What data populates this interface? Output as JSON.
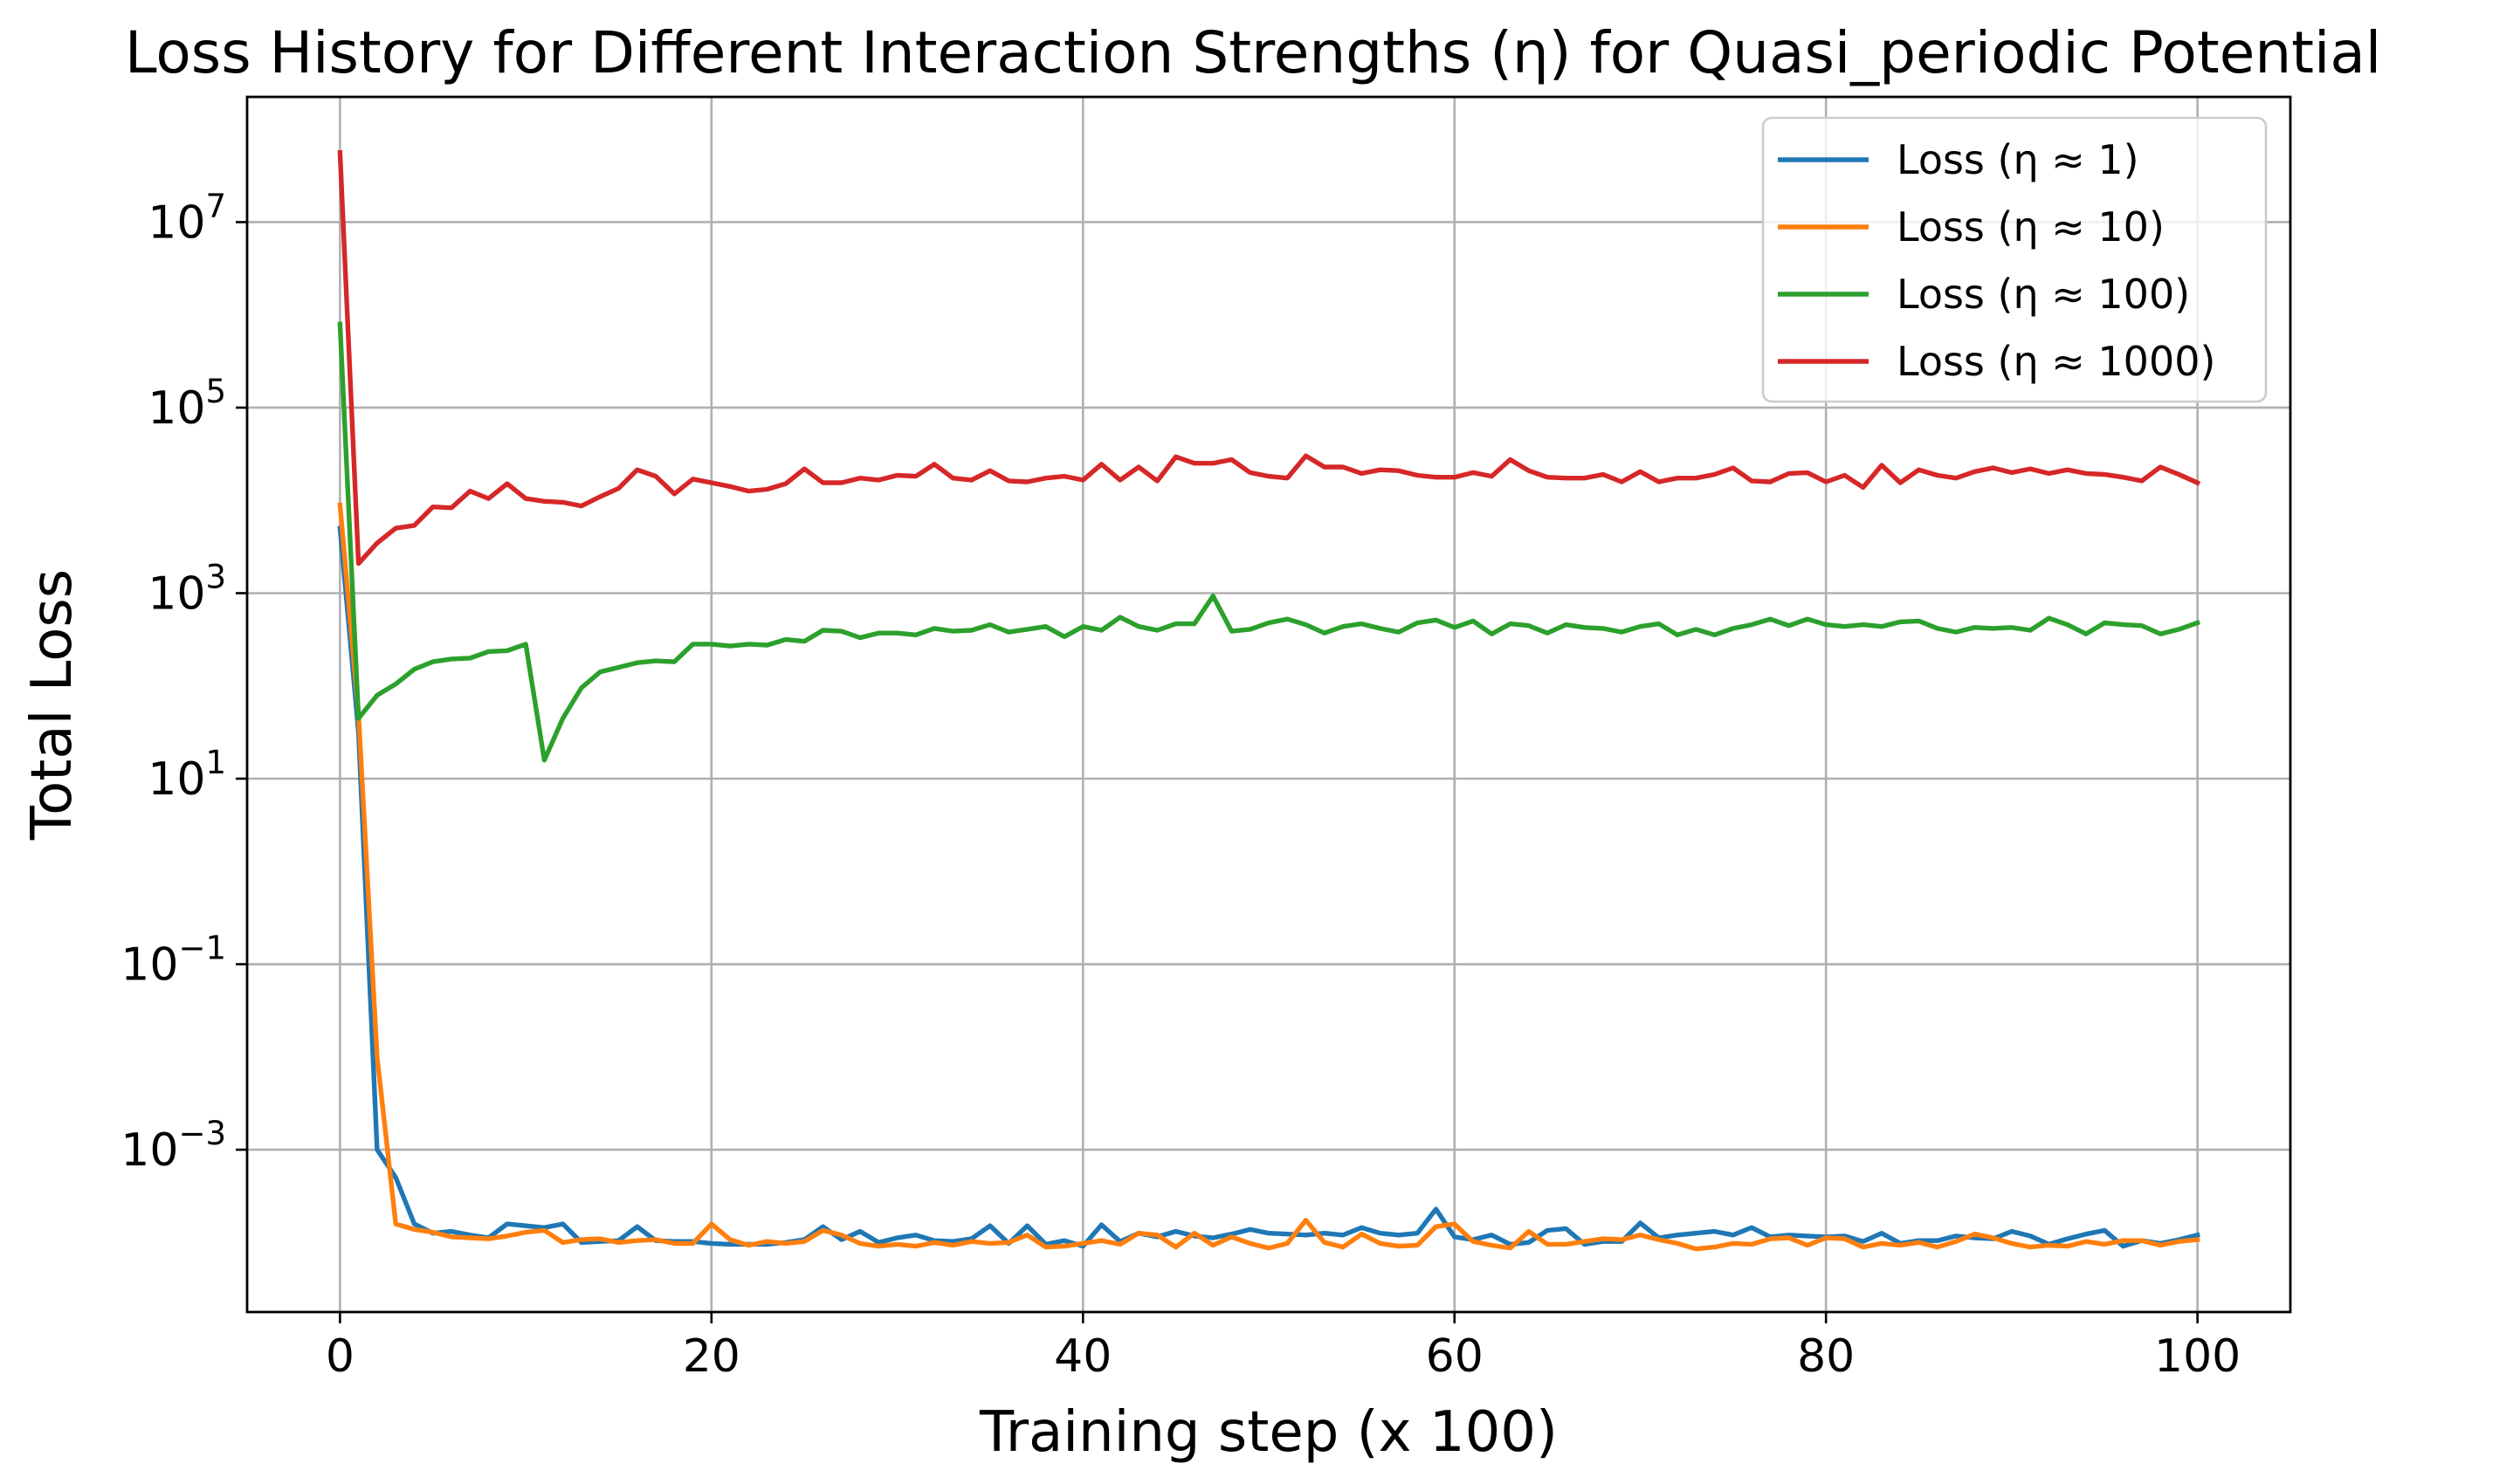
{
  "chart_data": {
    "type": "line",
    "title": "Loss History for Different Interaction Strengths (η) for Quasi_periodic Potential",
    "xlabel": "Training step (x 100)",
    "ylabel": "Total Loss",
    "yscale": "log",
    "xlim": [
      -5,
      105
    ],
    "ylim_log10": [
      -4.75,
      8.35
    ],
    "xticks": [
      0,
      20,
      40,
      60,
      80,
      100
    ],
    "xtick_labels": [
      "0",
      "20",
      "40",
      "60",
      "80",
      "100"
    ],
    "yticks_exp": [
      -3,
      -1,
      1,
      3,
      5,
      7
    ],
    "ytick_base": "10",
    "ytick_exps": [
      "−3",
      "−1",
      "1",
      "3",
      "5",
      "7"
    ],
    "grid": true,
    "legend_position": "upper right",
    "x": [
      0,
      1,
      2,
      3,
      4,
      5,
      6,
      7,
      8,
      9,
      10,
      11,
      12,
      13,
      14,
      15,
      16,
      17,
      18,
      19,
      20,
      21,
      22,
      23,
      24,
      25,
      26,
      27,
      28,
      29,
      30,
      31,
      32,
      33,
      34,
      35,
      36,
      37,
      38,
      39,
      40,
      41,
      42,
      43,
      44,
      45,
      46,
      47,
      48,
      49,
      50,
      51,
      52,
      53,
      54,
      55,
      56,
      57,
      58,
      59,
      60,
      61,
      62,
      63,
      64,
      65,
      66,
      67,
      68,
      69,
      70,
      71,
      72,
      73,
      74,
      75,
      76,
      77,
      78,
      79,
      80,
      81,
      82,
      83,
      84,
      85,
      86,
      87,
      88,
      89,
      90,
      91,
      92,
      93,
      94,
      95,
      96,
      97,
      98,
      99,
      100
    ],
    "series": [
      {
        "name": "Loss (η ≈ 1)",
        "color": "#1f77b4",
        "log10_values": [
          3.7,
          1.5,
          -3.0,
          -3.3,
          -3.8,
          -3.9,
          -3.88,
          -3.92,
          -3.95,
          -3.8,
          -3.82,
          -3.84,
          -3.8,
          -4.0,
          -3.99,
          -3.98,
          -3.83,
          -3.98,
          -3.99,
          -3.99,
          -4.01,
          -4.02,
          -4.02,
          -4.02,
          -4.0,
          -3.97,
          -3.83,
          -3.97,
          -3.88,
          -4.0,
          -3.95,
          -3.92,
          -3.98,
          -3.99,
          -3.96,
          -3.82,
          -4.01,
          -3.82,
          -4.02,
          -3.98,
          -4.04,
          -3.81,
          -3.99,
          -3.9,
          -3.94,
          -3.88,
          -3.93,
          -3.95,
          -3.91,
          -3.86,
          -3.9,
          -3.91,
          -3.92,
          -3.9,
          -3.92,
          -3.84,
          -3.9,
          -3.92,
          -3.9,
          -3.64,
          -3.94,
          -3.97,
          -3.92,
          -4.02,
          -4.0,
          -3.87,
          -3.85,
          -4.02,
          -3.99,
          -3.99,
          -3.79,
          -3.95,
          -3.92,
          -3.9,
          -3.88,
          -3.92,
          -3.84,
          -3.94,
          -3.92,
          -3.93,
          -3.94,
          -3.93,
          -3.99,
          -3.9,
          -4.01,
          -3.98,
          -3.98,
          -3.93,
          -3.95,
          -3.96,
          -3.88,
          -3.93,
          -4.02,
          -3.96,
          -3.91,
          -3.87,
          -4.04,
          -3.98,
          -4.01,
          -3.97,
          -3.92
        ]
      },
      {
        "name": "Loss (η ≈ 10)",
        "color": "#ff7f0e",
        "log10_values": [
          3.95,
          1.7,
          -2.0,
          -3.8,
          -3.86,
          -3.89,
          -3.94,
          -3.95,
          -3.96,
          -3.93,
          -3.89,
          -3.87,
          -4.0,
          -3.97,
          -3.96,
          -4.0,
          -3.98,
          -3.97,
          -4.01,
          -4.01,
          -3.8,
          -3.97,
          -4.03,
          -3.99,
          -4.01,
          -3.99,
          -3.87,
          -3.92,
          -4.01,
          -4.04,
          -4.02,
          -4.04,
          -4.0,
          -4.03,
          -3.99,
          -4.01,
          -4.0,
          -3.92,
          -4.05,
          -4.04,
          -4.01,
          -3.98,
          -4.02,
          -3.9,
          -3.92,
          -4.05,
          -3.9,
          -4.03,
          -3.94,
          -4.01,
          -4.06,
          -4.01,
          -3.76,
          -4.0,
          -4.05,
          -3.91,
          -4.01,
          -4.04,
          -4.03,
          -3.83,
          -3.8,
          -3.99,
          -4.03,
          -4.06,
          -3.88,
          -4.02,
          -4.02,
          -3.99,
          -3.96,
          -3.97,
          -3.92,
          -3.97,
          -4.01,
          -4.07,
          -4.05,
          -4.01,
          -4.02,
          -3.96,
          -3.95,
          -4.03,
          -3.95,
          -3.96,
          -4.05,
          -4.01,
          -4.03,
          -4.0,
          -4.05,
          -3.99,
          -3.91,
          -3.95,
          -4.01,
          -4.05,
          -4.03,
          -4.04,
          -3.99,
          -4.02,
          -3.98,
          -3.98,
          -4.03,
          -3.99,
          -3.97
        ]
      },
      {
        "name": "Loss (η ≈ 100)",
        "color": "#2ca02c",
        "log10_values": [
          5.9,
          1.65,
          1.9,
          2.02,
          2.18,
          2.26,
          2.29,
          2.3,
          2.37,
          2.38,
          2.45,
          1.2,
          1.65,
          1.98,
          2.15,
          2.2,
          2.25,
          2.27,
          2.26,
          2.45,
          2.45,
          2.43,
          2.45,
          2.44,
          2.5,
          2.48,
          2.6,
          2.59,
          2.52,
          2.57,
          2.57,
          2.55,
          2.62,
          2.59,
          2.6,
          2.66,
          2.58,
          2.61,
          2.64,
          2.53,
          2.64,
          2.6,
          2.74,
          2.64,
          2.6,
          2.67,
          2.67,
          2.97,
          2.59,
          2.61,
          2.68,
          2.72,
          2.66,
          2.57,
          2.64,
          2.67,
          2.62,
          2.58,
          2.68,
          2.71,
          2.63,
          2.7,
          2.56,
          2.67,
          2.65,
          2.57,
          2.66,
          2.63,
          2.62,
          2.58,
          2.64,
          2.67,
          2.55,
          2.61,
          2.55,
          2.62,
          2.66,
          2.72,
          2.65,
          2.72,
          2.66,
          2.64,
          2.66,
          2.64,
          2.69,
          2.7,
          2.62,
          2.58,
          2.63,
          2.62,
          2.63,
          2.6,
          2.73,
          2.66,
          2.56,
          2.68,
          2.66,
          2.65,
          2.56,
          2.61,
          2.68
        ]
      },
      {
        "name": "Loss (η ≈ 1000)",
        "color": "#d62728",
        "log10_values": [
          7.75,
          3.32,
          3.54,
          3.7,
          3.73,
          3.93,
          3.92,
          4.1,
          4.02,
          4.18,
          4.02,
          3.99,
          3.98,
          3.94,
          4.04,
          4.13,
          4.33,
          4.26,
          4.07,
          4.23,
          4.19,
          4.15,
          4.1,
          4.12,
          4.18,
          4.34,
          4.19,
          4.19,
          4.24,
          4.22,
          4.27,
          4.26,
          4.39,
          4.24,
          4.22,
          4.32,
          4.21,
          4.2,
          4.24,
          4.26,
          4.22,
          4.39,
          4.22,
          4.36,
          4.21,
          4.47,
          4.4,
          4.4,
          4.44,
          4.3,
          4.26,
          4.24,
          4.48,
          4.36,
          4.36,
          4.29,
          4.33,
          4.32,
          4.27,
          4.25,
          4.25,
          4.3,
          4.26,
          4.44,
          4.32,
          4.25,
          4.24,
          4.24,
          4.28,
          4.2,
          4.31,
          4.2,
          4.24,
          4.24,
          4.28,
          4.35,
          4.21,
          4.2,
          4.29,
          4.3,
          4.2,
          4.27,
          4.14,
          4.38,
          4.19,
          4.33,
          4.27,
          4.24,
          4.31,
          4.35,
          4.3,
          4.34,
          4.29,
          4.33,
          4.29,
          4.28,
          4.25,
          4.21,
          4.36,
          4.28,
          4.19
        ]
      }
    ]
  }
}
